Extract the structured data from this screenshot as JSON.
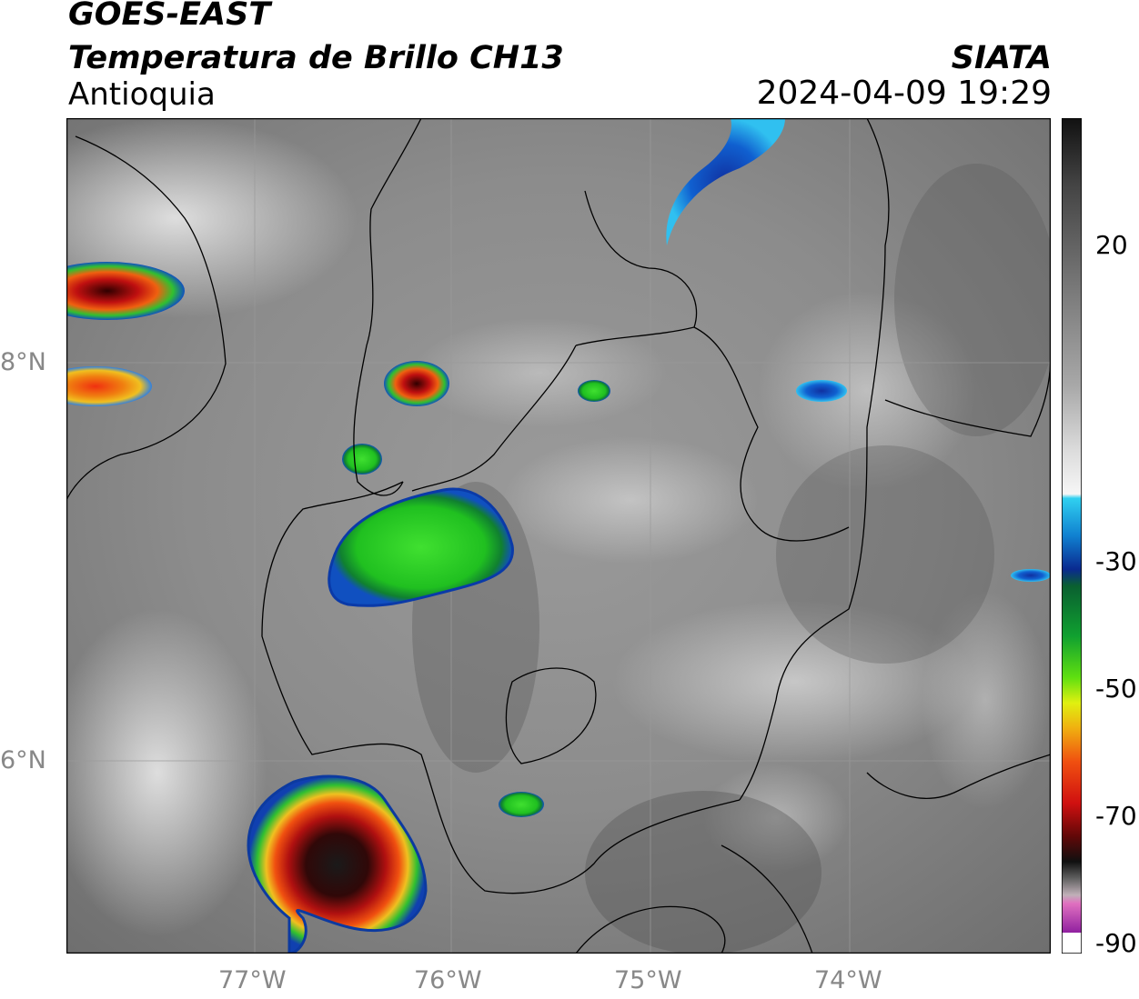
{
  "header": {
    "satellite": "GOES-EAST",
    "product": "Temperatura de Brillo CH13",
    "region": "Antioquia",
    "institution": "SIATA",
    "datetime": "2024-04-09 19:29"
  },
  "axes": {
    "lat_labels": [
      "8°N",
      "6°N"
    ],
    "lon_labels": [
      "77°W",
      "76°W",
      "75°W",
      "74°W"
    ]
  },
  "colorbar": {
    "tick_labels": [
      "20",
      "-30",
      "-50",
      "-70",
      "-90"
    ]
  },
  "colors": {
    "background_gray": "#8a8a8a",
    "cold_cloud_blue": "#1040c0",
    "green": "#20d020",
    "red": "#c01010",
    "black": "#101010"
  }
}
